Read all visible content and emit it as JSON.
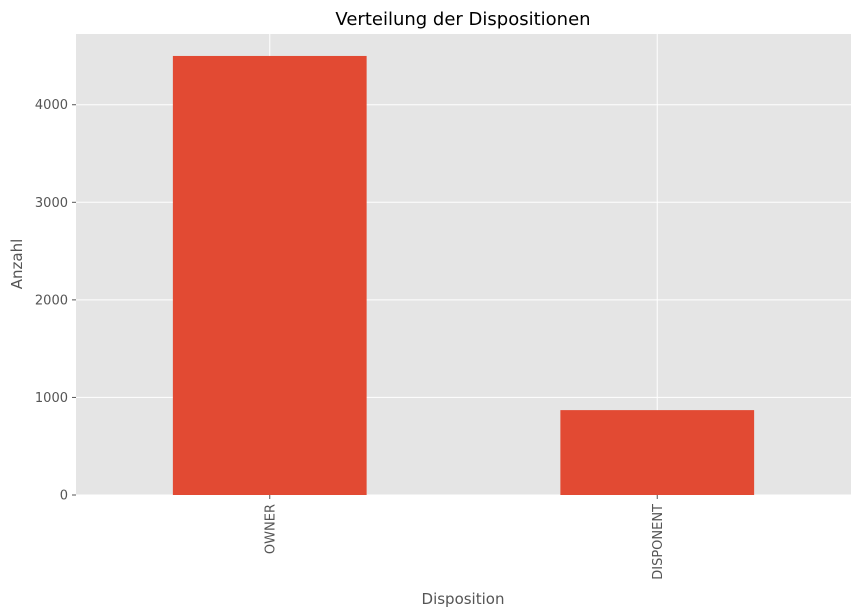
{
  "chart_data": {
    "type": "bar",
    "title": "Verteilung der Dispositionen",
    "xlabel": "Disposition",
    "ylabel": "Anzahl",
    "categories": [
      "OWNER",
      "DISPONENT"
    ],
    "values": [
      4500,
      870
    ],
    "ylim": [
      0,
      4725
    ],
    "yticks": [
      0,
      1000,
      2000,
      3000,
      4000
    ],
    "grid": true,
    "legend": "none",
    "colors": {
      "bar": "#E24A33",
      "plot_background": "#E5E5E5",
      "grid": "#FFFFFF",
      "text": "#555555"
    }
  }
}
